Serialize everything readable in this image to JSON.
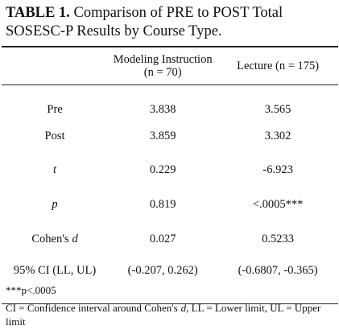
{
  "title": {
    "label": "TABLE 1.",
    "text": "Comparison of PRE to POST Total SOSESC-P Results by Course Type."
  },
  "table": {
    "columns": [
      "Modeling Instruction (n = 70)",
      "Lecture (n = 175)"
    ],
    "rows": [
      {
        "label": "Pre",
        "values": [
          "3.838",
          "3.565"
        ]
      },
      {
        "label": "Post",
        "values": [
          "3.859",
          "3.302"
        ]
      },
      {
        "label": "t",
        "italic": true,
        "values": [
          "0.229",
          "-6.923"
        ]
      },
      {
        "label": "p",
        "italic": true,
        "values": [
          "0.819",
          "<.0005***"
        ]
      },
      {
        "label": "Cohen's",
        "label_italic": "d",
        "values": [
          "0.027",
          "0.5233"
        ]
      },
      {
        "label": "95% CI  (LL, UL)",
        "values": [
          "(-0.207, 0.262)",
          "(-0.6807, -0.365)"
        ]
      }
    ]
  },
  "notes": {
    "significance": "***p<.0005",
    "ci": [
      "CI = Confidence interval around Cohen's",
      "d",
      ", LL = Lower limit, UL = Upper limit"
    ]
  }
}
